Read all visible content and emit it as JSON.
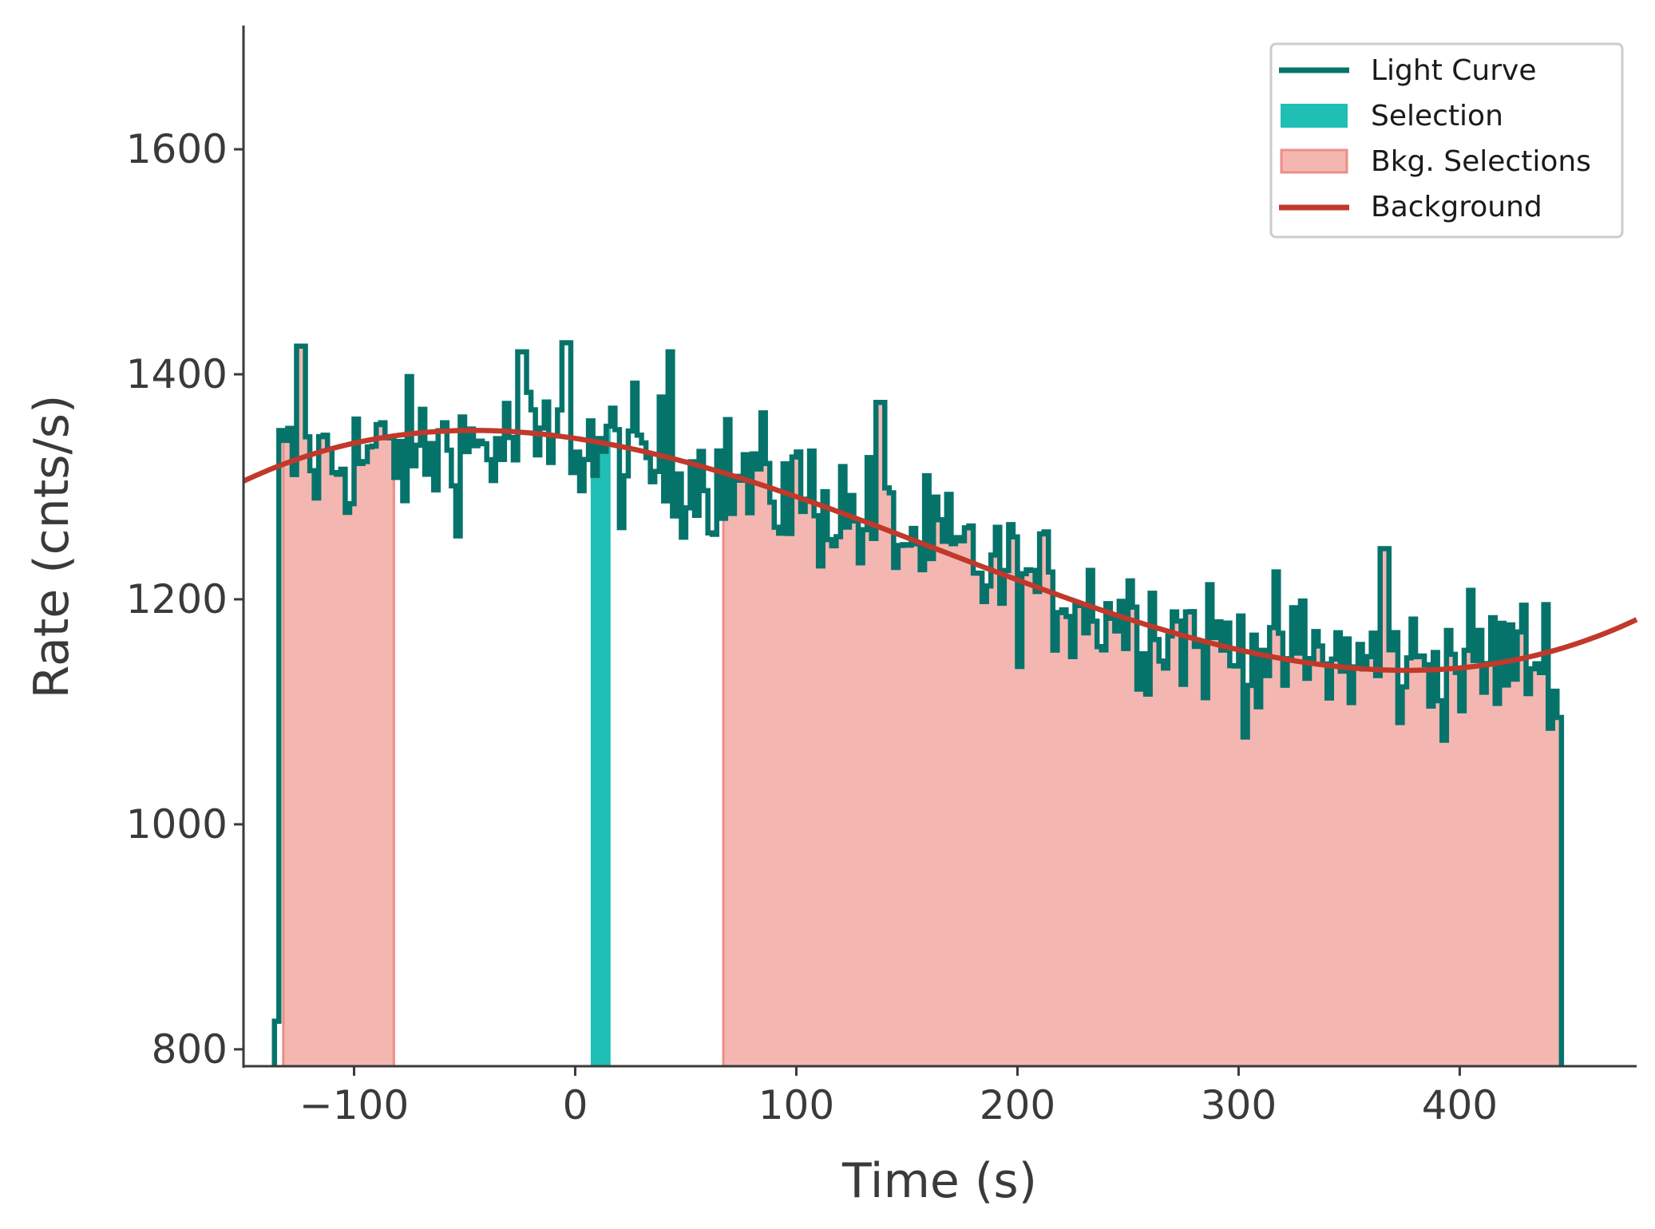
{
  "chart_data": {
    "type": "line",
    "title": "",
    "xlabel": "Time (s)",
    "ylabel": "Rate (cnts/s)",
    "xlim": [
      -150,
      480
    ],
    "ylim": [
      785,
      1710
    ],
    "xticks": [
      {
        "value": -100,
        "label": "−100"
      },
      {
        "value": 0,
        "label": "0"
      },
      {
        "value": 100,
        "label": "100"
      },
      {
        "value": 200,
        "label": "200"
      },
      {
        "value": 300,
        "label": "300"
      },
      {
        "value": 400,
        "label": "400"
      }
    ],
    "yticks": [
      {
        "value": 800,
        "label": "800"
      },
      {
        "value": 1000,
        "label": "1000"
      },
      {
        "value": 1200,
        "label": "1200"
      },
      {
        "value": 1400,
        "label": "1400"
      },
      {
        "value": 1600,
        "label": "1600"
      }
    ],
    "grid": false,
    "legend_position": "top-right",
    "legend": [
      {
        "key": "light_curve",
        "label": "Light Curve"
      },
      {
        "key": "selection",
        "label": "Selection"
      },
      {
        "key": "bkg_selections",
        "label": "Bkg. Selections"
      },
      {
        "key": "background",
        "label": "Background"
      }
    ],
    "colors": {
      "light_curve": "#06736b",
      "selection": "#1fbfb5",
      "bkg_fill": "#f4b6b1",
      "bkg_edge": "#ec8f86",
      "background": "#c0392b",
      "axis": "#3a3a3a"
    },
    "light_curve": {
      "t_start": -134,
      "t_end": 446,
      "bin_width": 2,
      "trend_points": [
        {
          "t": -134,
          "rate": 1320
        },
        {
          "t": -50,
          "rate": 1335
        },
        {
          "t": 0,
          "rate": 1335
        },
        {
          "t": 100,
          "rate": 1295
        },
        {
          "t": 200,
          "rate": 1215
        },
        {
          "t": 300,
          "rate": 1155
        },
        {
          "t": 370,
          "rate": 1140
        },
        {
          "t": 446,
          "rate": 1150
        }
      ],
      "scatter_sigma": 30,
      "peaks": [
        {
          "t": -125,
          "rate": 1425
        },
        {
          "t": -25,
          "rate": 1420
        },
        {
          "t": -5,
          "rate": 1428
        },
        {
          "t": 42,
          "rate": 1420
        },
        {
          "t": 137,
          "rate": 1375
        },
        {
          "t": 365,
          "rate": 1245
        }
      ],
      "leading_low": {
        "t": -136,
        "rate": 825
      },
      "final": {
        "t": 446,
        "rate": 1095
      },
      "drop_to": 785
    },
    "selection": {
      "t_min": 7,
      "t_max": 16
    },
    "bkg_selections": [
      {
        "t_min": -132,
        "t_max": -82
      },
      {
        "t_min": 67,
        "t_max": 446
      }
    ],
    "background_poly": {
      "type": "cubic",
      "points": [
        {
          "t": -150,
          "rate": 1305
        },
        {
          "t": -40,
          "rate": 1350
        },
        {
          "t": 370,
          "rate": 1137
        },
        {
          "t": 480,
          "rate": 1182
        }
      ]
    }
  }
}
